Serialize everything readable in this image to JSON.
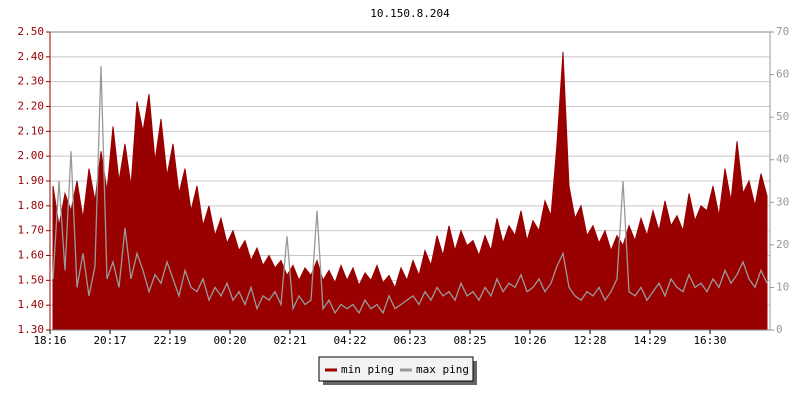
{
  "chart_data": {
    "type": "line",
    "title": "10.150.8.204",
    "categories": [
      "18:16",
      null,
      null,
      null,
      null,
      null,
      null,
      null,
      null,
      null,
      "20:17",
      null,
      null,
      null,
      null,
      null,
      null,
      null,
      null,
      null,
      "22:19",
      null,
      null,
      null,
      null,
      null,
      null,
      null,
      null,
      null,
      "00:20",
      null,
      null,
      null,
      null,
      null,
      null,
      null,
      null,
      null,
      "02:21",
      null,
      null,
      null,
      null,
      null,
      null,
      null,
      null,
      null,
      "04:22",
      null,
      null,
      null,
      null,
      null,
      null,
      null,
      null,
      null,
      "06:23",
      null,
      null,
      null,
      null,
      null,
      null,
      null,
      null,
      null,
      "08:25",
      null,
      null,
      null,
      null,
      null,
      null,
      null,
      null,
      null,
      "10:26",
      null,
      null,
      null,
      null,
      null,
      null,
      null,
      null,
      null,
      "12:28",
      null,
      null,
      null,
      null,
      null,
      null,
      null,
      null,
      null,
      "14:29",
      null,
      null,
      null,
      null,
      null,
      null,
      null,
      null,
      null,
      "16:30",
      null,
      null,
      null,
      null,
      null,
      null,
      null,
      null,
      null
    ],
    "series": [
      {
        "name": "min ping",
        "type": "area",
        "color": "#990000",
        "values": [
          1.88,
          1.72,
          1.85,
          1.78,
          1.9,
          1.75,
          1.95,
          1.82,
          2.02,
          1.86,
          2.12,
          1.9,
          2.05,
          1.88,
          2.22,
          2.1,
          2.25,
          1.98,
          2.15,
          1.92,
          2.05,
          1.85,
          1.95,
          1.78,
          1.88,
          1.72,
          1.8,
          1.68,
          1.75,
          1.65,
          1.7,
          1.62,
          1.66,
          1.58,
          1.63,
          1.56,
          1.6,
          1.55,
          1.58,
          1.52,
          1.56,
          1.5,
          1.55,
          1.52,
          1.58,
          1.5,
          1.54,
          1.49,
          1.56,
          1.5,
          1.55,
          1.48,
          1.53,
          1.5,
          1.56,
          1.49,
          1.52,
          1.47,
          1.55,
          1.5,
          1.58,
          1.52,
          1.62,
          1.56,
          1.68,
          1.6,
          1.72,
          1.62,
          1.7,
          1.64,
          1.66,
          1.6,
          1.68,
          1.62,
          1.75,
          1.65,
          1.72,
          1.68,
          1.78,
          1.66,
          1.74,
          1.7,
          1.82,
          1.76,
          2.05,
          2.42,
          1.88,
          1.75,
          1.8,
          1.68,
          1.72,
          1.65,
          1.7,
          1.62,
          1.68,
          1.64,
          1.72,
          1.66,
          1.75,
          1.68,
          1.78,
          1.7,
          1.82,
          1.72,
          1.76,
          1.7,
          1.85,
          1.74,
          1.8,
          1.78,
          1.88,
          1.76,
          1.95,
          1.82,
          2.06,
          1.85,
          1.9,
          1.8,
          1.93,
          1.84
        ]
      },
      {
        "name": "max ping",
        "type": "line",
        "axis": "y2",
        "color": "#999999",
        "values": [
          12,
          35,
          14,
          42,
          10,
          18,
          8,
          15,
          62,
          12,
          16,
          10,
          24,
          12,
          18,
          14,
          9,
          13,
          11,
          16,
          12,
          8,
          14,
          10,
          9,
          12,
          7,
          10,
          8,
          11,
          7,
          9,
          6,
          10,
          5,
          8,
          7,
          9,
          6,
          22,
          5,
          8,
          6,
          7,
          28,
          5,
          7,
          4,
          6,
          5,
          6,
          4,
          7,
          5,
          6,
          4,
          8,
          5,
          6,
          7,
          8,
          6,
          9,
          7,
          10,
          8,
          9,
          7,
          11,
          8,
          9,
          7,
          10,
          8,
          12,
          9,
          11,
          10,
          13,
          9,
          10,
          12,
          9,
          11,
          15,
          18,
          10,
          8,
          7,
          9,
          8,
          10,
          7,
          9,
          12,
          35,
          9,
          8,
          10,
          7,
          9,
          11,
          8,
          12,
          10,
          9,
          13,
          10,
          11,
          9,
          12,
          10,
          14,
          11,
          13,
          16,
          12,
          10,
          14,
          11
        ]
      }
    ],
    "ylim": [
      1.3,
      2.5
    ],
    "yticks": [
      {
        "value": 1.3,
        "label": "1.30"
      },
      {
        "value": 1.4,
        "label": "1.40"
      },
      {
        "value": 1.5,
        "label": "1.50"
      },
      {
        "value": 1.6,
        "label": "1.60"
      },
      {
        "value": 1.7,
        "label": "1.70"
      },
      {
        "value": 1.8,
        "label": "1.80"
      },
      {
        "value": 1.9,
        "label": "1.90"
      },
      {
        "value": 2.0,
        "label": "2.00"
      },
      {
        "value": 2.1,
        "label": "2.10"
      },
      {
        "value": 2.2,
        "label": "2.20"
      },
      {
        "value": 2.3,
        "label": "2.30"
      },
      {
        "value": 2.4,
        "label": "2.40"
      },
      {
        "value": 2.5,
        "label": "2.50"
      }
    ],
    "y2lim": [
      0,
      70
    ],
    "y2ticks": [
      0,
      10,
      20,
      30,
      40,
      50,
      60,
      70
    ],
    "grid": true
  }
}
